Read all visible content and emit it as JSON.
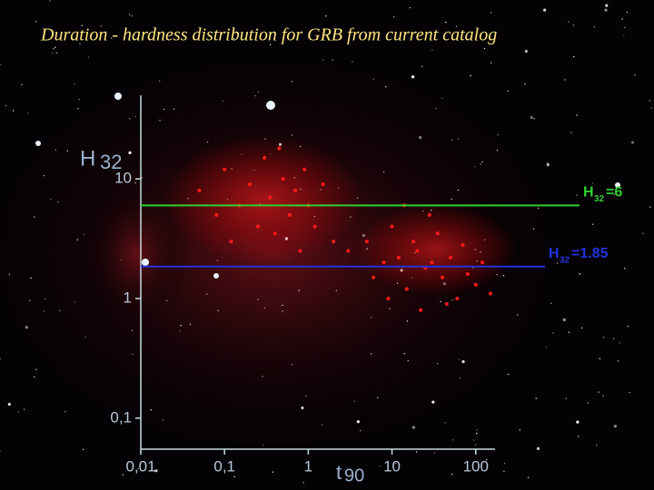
{
  "chart_data": {
    "type": "scatter",
    "title": "Duration - hardness distribution for GRB from current catalog",
    "y_label": {
      "main": "H",
      "sub": "32"
    },
    "x_label": {
      "main": "t",
      "sub": "90"
    },
    "log_x": true,
    "log_y": true,
    "xlim": [
      0.01,
      170
    ],
    "ylim": [
      0.055,
      50
    ],
    "xticks": [
      {
        "value": 0.01,
        "label": "0,01"
      },
      {
        "value": 0.1,
        "label": "0,1"
      },
      1,
      10,
      100
    ],
    "yticks": [
      {
        "value": 0.1,
        "label": "0,1"
      },
      1,
      10
    ],
    "color": "#ff1a1a",
    "x": [
      0.05,
      0.08,
      0.1,
      0.15,
      0.2,
      0.25,
      0.3,
      0.35,
      0.4,
      0.5,
      0.6,
      0.7,
      0.8,
      1,
      1.2,
      1.5,
      2,
      0.12,
      0.45,
      0.9,
      3,
      5,
      6,
      8,
      10,
      12,
      15,
      18,
      20,
      25,
      30,
      35,
      40,
      50,
      60,
      70,
      80,
      100,
      120,
      150,
      9,
      14,
      22,
      45,
      28
    ],
    "values": [
      8,
      5,
      12,
      6,
      9,
      4,
      15,
      7,
      3.5,
      10,
      5,
      8,
      2.5,
      6,
      4,
      9,
      3,
      3,
      18,
      12,
      2.5,
      3,
      1.5,
      2,
      4,
      2.2,
      1.2,
      3,
      2.5,
      1.8,
      2,
      3.5,
      1.5,
      2.2,
      1,
      2.8,
      1.6,
      1.3,
      2,
      1.1,
      1,
      6,
      0.8,
      0.9,
      5
    ],
    "hlines": [
      {
        "value": 6,
        "label": "H",
        "label_sub": "32",
        "label_suffix": "=6",
        "color": "#2fd02f"
      },
      {
        "value": 1.85,
        "label": "H",
        "label_sub": "32",
        "label_suffix": "=1.85",
        "color": "#2233dd"
      }
    ]
  }
}
